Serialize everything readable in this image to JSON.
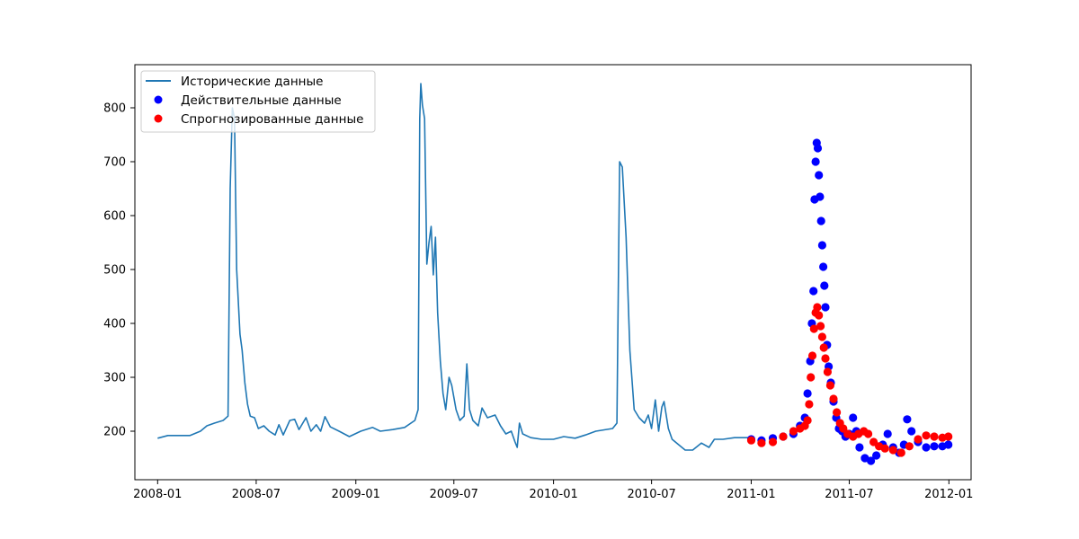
{
  "chart_data": {
    "type": "line",
    "title": "",
    "xlabel": "",
    "ylabel": "",
    "xlim": [
      "2007-11-20",
      "2012-02-11"
    ],
    "ylim": [
      110,
      880
    ],
    "x_ticks": [
      "2008-01",
      "2008-07",
      "2009-01",
      "2009-07",
      "2010-01",
      "2010-07",
      "2011-01",
      "2011-07",
      "2012-01"
    ],
    "y_ticks": [
      200,
      300,
      400,
      500,
      600,
      700,
      800
    ],
    "grid": false,
    "legend_position": "top-left",
    "series": [
      {
        "name": "Исторические данные",
        "kind": "line",
        "color": "#1f77b4",
        "points": [
          [
            "2008-01-01",
            187
          ],
          [
            "2008-01-20",
            192
          ],
          [
            "2008-02-15",
            192
          ],
          [
            "2008-03-01",
            192
          ],
          [
            "2008-03-20",
            200
          ],
          [
            "2008-04-01",
            210
          ],
          [
            "2008-04-15",
            215
          ],
          [
            "2008-05-01",
            220
          ],
          [
            "2008-05-10",
            228
          ],
          [
            "2008-05-14",
            650
          ],
          [
            "2008-05-18",
            800
          ],
          [
            "2008-05-22",
            780
          ],
          [
            "2008-05-26",
            500
          ],
          [
            "2008-06-01",
            380
          ],
          [
            "2008-06-05",
            350
          ],
          [
            "2008-06-10",
            290
          ],
          [
            "2008-06-15",
            250
          ],
          [
            "2008-06-20",
            228
          ],
          [
            "2008-06-28",
            225
          ],
          [
            "2008-07-05",
            205
          ],
          [
            "2008-07-15",
            210
          ],
          [
            "2008-07-25",
            200
          ],
          [
            "2008-08-05",
            193
          ],
          [
            "2008-08-12",
            212
          ],
          [
            "2008-08-20",
            193
          ],
          [
            "2008-09-01",
            220
          ],
          [
            "2008-09-10",
            222
          ],
          [
            "2008-09-18",
            203
          ],
          [
            "2008-10-01",
            225
          ],
          [
            "2008-10-10",
            200
          ],
          [
            "2008-10-20",
            212
          ],
          [
            "2008-10-28",
            200
          ],
          [
            "2008-11-05",
            227
          ],
          [
            "2008-11-15",
            208
          ],
          [
            "2008-12-01",
            200
          ],
          [
            "2008-12-20",
            190
          ],
          [
            "2009-01-10",
            200
          ],
          [
            "2009-02-01",
            207
          ],
          [
            "2009-02-15",
            200
          ],
          [
            "2009-03-10",
            203
          ],
          [
            "2009-04-01",
            207
          ],
          [
            "2009-04-20",
            220
          ],
          [
            "2009-04-26",
            240
          ],
          [
            "2009-04-29",
            780
          ],
          [
            "2009-05-01",
            845
          ],
          [
            "2009-05-04",
            805
          ],
          [
            "2009-05-08",
            780
          ],
          [
            "2009-05-12",
            510
          ],
          [
            "2009-05-16",
            550
          ],
          [
            "2009-05-20",
            580
          ],
          [
            "2009-05-24",
            490
          ],
          [
            "2009-05-28",
            560
          ],
          [
            "2009-06-01",
            420
          ],
          [
            "2009-06-06",
            330
          ],
          [
            "2009-06-11",
            270
          ],
          [
            "2009-06-16",
            240
          ],
          [
            "2009-06-22",
            300
          ],
          [
            "2009-06-27",
            285
          ],
          [
            "2009-07-05",
            240
          ],
          [
            "2009-07-12",
            220
          ],
          [
            "2009-07-20",
            228
          ],
          [
            "2009-07-25",
            325
          ],
          [
            "2009-07-30",
            240
          ],
          [
            "2009-08-05",
            220
          ],
          [
            "2009-08-15",
            210
          ],
          [
            "2009-08-22",
            243
          ],
          [
            "2009-09-01",
            225
          ],
          [
            "2009-09-15",
            230
          ],
          [
            "2009-09-25",
            210
          ],
          [
            "2009-10-05",
            195
          ],
          [
            "2009-10-15",
            200
          ],
          [
            "2009-10-22",
            180
          ],
          [
            "2009-10-26",
            170
          ],
          [
            "2009-10-30",
            215
          ],
          [
            "2009-11-05",
            195
          ],
          [
            "2009-11-20",
            188
          ],
          [
            "2009-12-10",
            185
          ],
          [
            "2010-01-01",
            185
          ],
          [
            "2010-01-20",
            190
          ],
          [
            "2010-02-10",
            187
          ],
          [
            "2010-03-01",
            193
          ],
          [
            "2010-03-20",
            200
          ],
          [
            "2010-04-20",
            205
          ],
          [
            "2010-04-28",
            215
          ],
          [
            "2010-05-03",
            700
          ],
          [
            "2010-05-08",
            690
          ],
          [
            "2010-05-15",
            560
          ],
          [
            "2010-05-22",
            350
          ],
          [
            "2010-05-30",
            240
          ],
          [
            "2010-06-08",
            225
          ],
          [
            "2010-06-18",
            215
          ],
          [
            "2010-06-25",
            230
          ],
          [
            "2010-07-01",
            205
          ],
          [
            "2010-07-08",
            258
          ],
          [
            "2010-07-14",
            200
          ],
          [
            "2010-07-20",
            245
          ],
          [
            "2010-07-24",
            255
          ],
          [
            "2010-08-01",
            205
          ],
          [
            "2010-08-08",
            185
          ],
          [
            "2010-08-20",
            175
          ],
          [
            "2010-09-01",
            165
          ],
          [
            "2010-09-15",
            165
          ],
          [
            "2010-10-01",
            178
          ],
          [
            "2010-10-15",
            170
          ],
          [
            "2010-10-25",
            185
          ],
          [
            "2010-11-10",
            185
          ],
          [
            "2010-12-01",
            188
          ],
          [
            "2010-12-31",
            188
          ]
        ]
      },
      {
        "name": "Действительные данные",
        "kind": "scatter",
        "color": "#0000ff",
        "points": [
          [
            "2011-01-01",
            185
          ],
          [
            "2011-01-20",
            183
          ],
          [
            "2011-02-10",
            187
          ],
          [
            "2011-03-01",
            190
          ],
          [
            "2011-03-20",
            195
          ],
          [
            "2011-04-01",
            210
          ],
          [
            "2011-04-10",
            225
          ],
          [
            "2011-04-15",
            270
          ],
          [
            "2011-04-20",
            330
          ],
          [
            "2011-04-23",
            400
          ],
          [
            "2011-04-26",
            460
          ],
          [
            "2011-04-28",
            630
          ],
          [
            "2011-04-30",
            700
          ],
          [
            "2011-05-02",
            735
          ],
          [
            "2011-05-04",
            725
          ],
          [
            "2011-05-06",
            675
          ],
          [
            "2011-05-08",
            635
          ],
          [
            "2011-05-10",
            590
          ],
          [
            "2011-05-12",
            545
          ],
          [
            "2011-05-14",
            505
          ],
          [
            "2011-05-16",
            470
          ],
          [
            "2011-05-18",
            430
          ],
          [
            "2011-05-21",
            360
          ],
          [
            "2011-05-24",
            320
          ],
          [
            "2011-05-28",
            290
          ],
          [
            "2011-06-02",
            255
          ],
          [
            "2011-06-07",
            225
          ],
          [
            "2011-06-12",
            205
          ],
          [
            "2011-06-18",
            200
          ],
          [
            "2011-06-24",
            190
          ],
          [
            "2011-07-01",
            195
          ],
          [
            "2011-07-08",
            225
          ],
          [
            "2011-07-14",
            200
          ],
          [
            "2011-07-20",
            170
          ],
          [
            "2011-07-30",
            150
          ],
          [
            "2011-08-10",
            145
          ],
          [
            "2011-08-20",
            155
          ],
          [
            "2011-09-01",
            175
          ],
          [
            "2011-09-10",
            195
          ],
          [
            "2011-09-20",
            170
          ],
          [
            "2011-10-01",
            160
          ],
          [
            "2011-10-10",
            175
          ],
          [
            "2011-10-16",
            222
          ],
          [
            "2011-10-24",
            200
          ],
          [
            "2011-11-05",
            180
          ],
          [
            "2011-11-20",
            170
          ],
          [
            "2011-12-05",
            172
          ],
          [
            "2011-12-20",
            172
          ],
          [
            "2011-12-31",
            175
          ]
        ]
      },
      {
        "name": "Спрогнозированные данные",
        "kind": "scatter",
        "color": "#ff0000",
        "points": [
          [
            "2011-01-01",
            183
          ],
          [
            "2011-01-20",
            178
          ],
          [
            "2011-02-10",
            180
          ],
          [
            "2011-03-01",
            190
          ],
          [
            "2011-03-20",
            200
          ],
          [
            "2011-04-01",
            205
          ],
          [
            "2011-04-10",
            210
          ],
          [
            "2011-04-15",
            220
          ],
          [
            "2011-04-18",
            250
          ],
          [
            "2011-04-21",
            300
          ],
          [
            "2011-04-24",
            340
          ],
          [
            "2011-04-27",
            390
          ],
          [
            "2011-04-30",
            420
          ],
          [
            "2011-05-03",
            430
          ],
          [
            "2011-05-06",
            415
          ],
          [
            "2011-05-09",
            395
          ],
          [
            "2011-05-12",
            375
          ],
          [
            "2011-05-15",
            355
          ],
          [
            "2011-05-18",
            335
          ],
          [
            "2011-05-22",
            310
          ],
          [
            "2011-05-27",
            285
          ],
          [
            "2011-06-02",
            260
          ],
          [
            "2011-06-08",
            235
          ],
          [
            "2011-06-14",
            215
          ],
          [
            "2011-06-20",
            205
          ],
          [
            "2011-06-28",
            195
          ],
          [
            "2011-07-08",
            190
          ],
          [
            "2011-07-18",
            195
          ],
          [
            "2011-07-28",
            200
          ],
          [
            "2011-08-05",
            195
          ],
          [
            "2011-08-15",
            180
          ],
          [
            "2011-08-25",
            172
          ],
          [
            "2011-09-05",
            168
          ],
          [
            "2011-09-20",
            165
          ],
          [
            "2011-10-05",
            160
          ],
          [
            "2011-10-20",
            172
          ],
          [
            "2011-11-05",
            185
          ],
          [
            "2011-11-20",
            192
          ],
          [
            "2011-12-05",
            190
          ],
          [
            "2011-12-20",
            188
          ],
          [
            "2011-12-31",
            190
          ]
        ]
      }
    ]
  }
}
